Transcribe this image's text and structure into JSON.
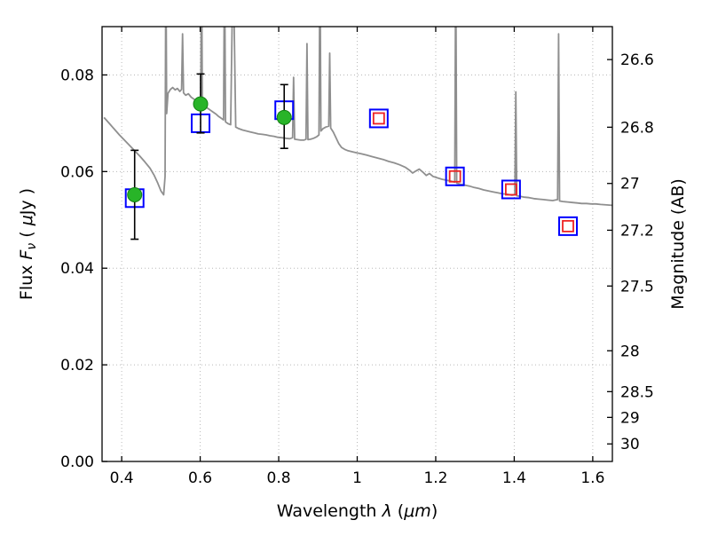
{
  "figure": {
    "background": "#ffffff",
    "frame_color": "#000000",
    "grid_color": "#b8b8b8"
  },
  "chart_data": {
    "type": "line",
    "title": "",
    "xlabel_parts": [
      {
        "t": "Wavelength ",
        "s": "n"
      },
      {
        "t": "λ",
        "s": "i"
      },
      {
        "t": " (",
        "s": "n"
      },
      {
        "t": "μm",
        "s": "i"
      },
      {
        "t": ")",
        "s": "n"
      }
    ],
    "ylabel_left_parts": [
      {
        "t": "Flux ",
        "s": "n"
      },
      {
        "t": "F",
        "s": "i"
      },
      {
        "t": "ν",
        "s": "sub"
      },
      {
        "t": " ( ",
        "s": "n"
      },
      {
        "t": "μ",
        "s": "i"
      },
      {
        "t": "Jy )",
        "s": "n"
      }
    ],
    "ylabel_right": "Magnitude (AB)",
    "xlim": [
      0.35,
      1.65
    ],
    "ylim": [
      0.0,
      0.09
    ],
    "grid": true,
    "x_ticks": [
      {
        "v": 0.4,
        "label": "0.4"
      },
      {
        "v": 0.6,
        "label": "0.6"
      },
      {
        "v": 0.8,
        "label": "0.8"
      },
      {
        "v": 1.0,
        "label": "1"
      },
      {
        "v": 1.2,
        "label": "1.2"
      },
      {
        "v": 1.4,
        "label": "1.4"
      },
      {
        "v": 1.6,
        "label": "1.6"
      }
    ],
    "y_ticks_left": [
      {
        "v": 0.0,
        "label": "0.00"
      },
      {
        "v": 0.02,
        "label": "0.02"
      },
      {
        "v": 0.04,
        "label": "0.04"
      },
      {
        "v": 0.06,
        "label": "0.06"
      },
      {
        "v": 0.08,
        "label": "0.08"
      }
    ],
    "y_ticks_right": [
      {
        "label": "26.6",
        "flux": 0.08318
      },
      {
        "label": "26.8",
        "flux": 0.06918
      },
      {
        "label": "27",
        "flux": 0.05754
      },
      {
        "label": "27.2",
        "flux": 0.04786
      },
      {
        "label": "27.5",
        "flux": 0.03631
      },
      {
        "label": "28",
        "flux": 0.02291
      },
      {
        "label": "28.5",
        "flux": 0.01445
      },
      {
        "label": "29",
        "flux": 0.00912
      },
      {
        "label": "30",
        "flux": 0.00363
      }
    ],
    "series": [
      {
        "name": "model-spectrum",
        "type": "line",
        "color": "#8f8f8f",
        "stroke_width": 1.8,
        "points": [
          [
            0.355,
            0.0712
          ],
          [
            0.368,
            0.07
          ],
          [
            0.381,
            0.0688
          ],
          [
            0.394,
            0.0676
          ],
          [
            0.407,
            0.0665
          ],
          [
            0.42,
            0.0654
          ],
          [
            0.433,
            0.0643
          ],
          [
            0.446,
            0.0632
          ],
          [
            0.459,
            0.062
          ],
          [
            0.472,
            0.0607
          ],
          [
            0.483,
            0.0592
          ],
          [
            0.492,
            0.0576
          ],
          [
            0.5,
            0.056
          ],
          [
            0.507,
            0.0552
          ],
          [
            0.5105,
            0.059
          ],
          [
            0.5125,
            0.105
          ],
          [
            0.5145,
            0.072
          ],
          [
            0.518,
            0.0762
          ],
          [
            0.524,
            0.077
          ],
          [
            0.53,
            0.0774
          ],
          [
            0.536,
            0.0769
          ],
          [
            0.542,
            0.0772
          ],
          [
            0.548,
            0.0766
          ],
          [
            0.5525,
            0.077
          ],
          [
            0.555,
            0.0885
          ],
          [
            0.5575,
            0.0763
          ],
          [
            0.563,
            0.0758
          ],
          [
            0.57,
            0.0761
          ],
          [
            0.577,
            0.0754
          ],
          [
            0.584,
            0.075
          ],
          [
            0.591,
            0.0746
          ],
          [
            0.598,
            0.0743
          ],
          [
            0.6015,
            0.0745
          ],
          [
            0.6035,
            0.105
          ],
          [
            0.6055,
            0.0738
          ],
          [
            0.612,
            0.0735
          ],
          [
            0.619,
            0.0731
          ],
          [
            0.626,
            0.0727
          ],
          [
            0.633,
            0.0723
          ],
          [
            0.64,
            0.0719
          ],
          [
            0.647,
            0.0714
          ],
          [
            0.654,
            0.071
          ],
          [
            0.6595,
            0.0707
          ],
          [
            0.662,
            0.105
          ],
          [
            0.6645,
            0.0703
          ],
          [
            0.671,
            0.0699
          ],
          [
            0.6775,
            0.0697
          ],
          [
            0.684,
            0.105
          ],
          [
            0.6905,
            0.0692
          ],
          [
            0.698,
            0.0689
          ],
          [
            0.708,
            0.0686
          ],
          [
            0.718,
            0.0684
          ],
          [
            0.728,
            0.0682
          ],
          [
            0.738,
            0.068
          ],
          [
            0.748,
            0.0678
          ],
          [
            0.758,
            0.0677
          ],
          [
            0.768,
            0.0676
          ],
          [
            0.778,
            0.0674
          ],
          [
            0.788,
            0.0673
          ],
          [
            0.798,
            0.0671
          ],
          [
            0.808,
            0.067
          ],
          [
            0.818,
            0.0669
          ],
          [
            0.828,
            0.0668
          ],
          [
            0.8355,
            0.067
          ],
          [
            0.838,
            0.0795
          ],
          [
            0.8405,
            0.0667
          ],
          [
            0.848,
            0.0666
          ],
          [
            0.856,
            0.0665
          ],
          [
            0.864,
            0.0665
          ],
          [
            0.8695,
            0.0667
          ],
          [
            0.872,
            0.0865
          ],
          [
            0.8745,
            0.0666
          ],
          [
            0.881,
            0.0667
          ],
          [
            0.889,
            0.0669
          ],
          [
            0.897,
            0.0672
          ],
          [
            0.9025,
            0.0676
          ],
          [
            0.905,
            0.105
          ],
          [
            0.9075,
            0.0684
          ],
          [
            0.913,
            0.0689
          ],
          [
            0.92,
            0.0692
          ],
          [
            0.9275,
            0.0694
          ],
          [
            0.93,
            0.0845
          ],
          [
            0.9325,
            0.069
          ],
          [
            0.939,
            0.0682
          ],
          [
            0.946,
            0.067
          ],
          [
            0.953,
            0.0658
          ],
          [
            0.96,
            0.065
          ],
          [
            0.968,
            0.0646
          ],
          [
            0.977,
            0.0643
          ],
          [
            0.987,
            0.0641
          ],
          [
            0.998,
            0.0639
          ],
          [
            1.01,
            0.0637
          ],
          [
            1.024,
            0.0634
          ],
          [
            1.038,
            0.0631
          ],
          [
            1.052,
            0.0628
          ],
          [
            1.066,
            0.0625
          ],
          [
            1.08,
            0.0621
          ],
          [
            1.094,
            0.0618
          ],
          [
            1.108,
            0.0614
          ],
          [
            1.122,
            0.0609
          ],
          [
            1.133,
            0.0603
          ],
          [
            1.141,
            0.0597
          ],
          [
            1.149,
            0.0601
          ],
          [
            1.158,
            0.0605
          ],
          [
            1.167,
            0.0599
          ],
          [
            1.176,
            0.0592
          ],
          [
            1.184,
            0.0596
          ],
          [
            1.193,
            0.059
          ],
          [
            1.204,
            0.0587
          ],
          [
            1.216,
            0.0584
          ],
          [
            1.228,
            0.0582
          ],
          [
            1.24,
            0.058
          ],
          [
            1.2485,
            0.0578
          ],
          [
            1.251,
            0.105
          ],
          [
            1.2535,
            0.0576
          ],
          [
            1.262,
            0.0574
          ],
          [
            1.274,
            0.0572
          ],
          [
            1.286,
            0.057
          ],
          [
            1.298,
            0.0567
          ],
          [
            1.31,
            0.0565
          ],
          [
            1.322,
            0.0562
          ],
          [
            1.334,
            0.056
          ],
          [
            1.346,
            0.0558
          ],
          [
            1.358,
            0.0556
          ],
          [
            1.37,
            0.0554
          ],
          [
            1.382,
            0.0553
          ],
          [
            1.394,
            0.0551
          ],
          [
            1.4015,
            0.0552
          ],
          [
            1.404,
            0.0765
          ],
          [
            1.4065,
            0.055
          ],
          [
            1.414,
            0.0549
          ],
          [
            1.426,
            0.0547
          ],
          [
            1.438,
            0.0546
          ],
          [
            1.45,
            0.0544
          ],
          [
            1.462,
            0.0543
          ],
          [
            1.474,
            0.0542
          ],
          [
            1.486,
            0.0541
          ],
          [
            1.498,
            0.054
          ],
          [
            1.5105,
            0.0542
          ],
          [
            1.513,
            0.0885
          ],
          [
            1.5155,
            0.0539
          ],
          [
            1.524,
            0.0538
          ],
          [
            1.536,
            0.0537
          ],
          [
            1.548,
            0.0536
          ],
          [
            1.56,
            0.0535
          ],
          [
            1.572,
            0.0534
          ],
          [
            1.584,
            0.0534
          ],
          [
            1.596,
            0.0533
          ],
          [
            1.608,
            0.0533
          ],
          [
            1.62,
            0.0532
          ],
          [
            1.635,
            0.0531
          ],
          [
            1.65,
            0.053
          ]
        ]
      },
      {
        "name": "model-photometry-broad",
        "type": "scatter",
        "marker": "open-square",
        "color": "#0000ff",
        "stroke_width": 2,
        "marker_size": 20,
        "points": [
          {
            "x": 0.433,
            "y": 0.0545
          },
          {
            "x": 0.601,
            "y": 0.07
          },
          {
            "x": 0.814,
            "y": 0.0727
          },
          {
            "x": 1.055,
            "y": 0.071
          },
          {
            "x": 1.249,
            "y": 0.059
          },
          {
            "x": 1.392,
            "y": 0.0563
          },
          {
            "x": 1.537,
            "y": 0.0487
          }
        ]
      },
      {
        "name": "model-photometry-inner",
        "type": "scatter",
        "marker": "open-square",
        "color": "#ee2222",
        "stroke_width": 1.8,
        "marker_size": 12,
        "points": [
          {
            "x": 1.055,
            "y": 0.071
          },
          {
            "x": 1.249,
            "y": 0.059
          },
          {
            "x": 1.392,
            "y": 0.0563
          },
          {
            "x": 1.537,
            "y": 0.0487
          }
        ]
      },
      {
        "name": "observed-photometry",
        "type": "scatter",
        "marker": "circle",
        "color": "#28b428",
        "edge_color": "#128012",
        "error_color": "#000000",
        "stroke_width": 1,
        "marker_size": 16,
        "points": [
          {
            "x": 0.433,
            "y": 0.0552,
            "yerr_lo": 0.0092,
            "yerr_hi": 0.0092
          },
          {
            "x": 0.601,
            "y": 0.074,
            "yerr_lo": 0.006,
            "yerr_hi": 0.0062
          },
          {
            "x": 0.814,
            "y": 0.0712,
            "yerr_lo": 0.0064,
            "yerr_hi": 0.0068
          }
        ]
      }
    ]
  }
}
